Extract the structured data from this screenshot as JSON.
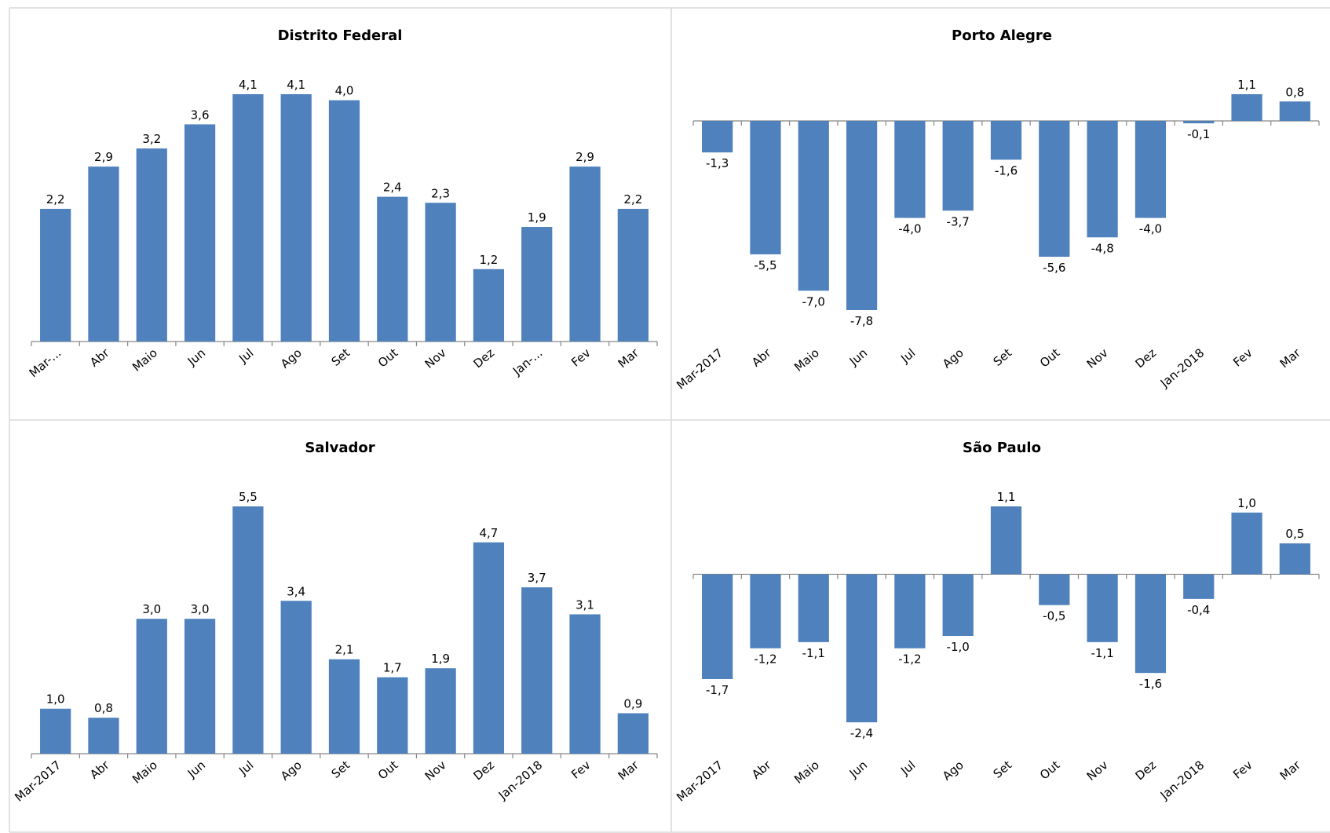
{
  "chart_data": [
    {
      "type": "bar",
      "title": "Distrito Federal",
      "color": "#4f81bd",
      "categories": [
        "Mar-...",
        "Abr",
        "Maio",
        "Jun",
        "Jul",
        "Ago",
        "Set",
        "Out",
        "Nov",
        "Dez",
        "Jan-...",
        "Fev",
        "Mar"
      ],
      "values": [
        2.2,
        2.9,
        3.2,
        3.6,
        4.1,
        4.1,
        4.0,
        2.4,
        2.3,
        1.2,
        1.9,
        2.9,
        2.2
      ],
      "value_labels": [
        "2,2",
        "2,9",
        "3,2",
        "3,6",
        "4,1",
        "4,1",
        "4,0",
        "2,4",
        "2,3",
        "1,2",
        "1,9",
        "2,9",
        "2,2"
      ]
    },
    {
      "type": "bar",
      "title": "Porto Alegre",
      "color": "#4f81bd",
      "categories": [
        "Mar-2017",
        "Abr",
        "Maio",
        "Jun",
        "Jul",
        "Ago",
        "Set",
        "Out",
        "Nov",
        "Dez",
        "Jan-2018",
        "Fev",
        "Mar"
      ],
      "values": [
        -1.3,
        -5.5,
        -7.0,
        -7.8,
        -4.0,
        -3.7,
        -1.6,
        -5.6,
        -4.8,
        -4.0,
        -0.1,
        1.1,
        0.8
      ],
      "value_labels": [
        "-1,3",
        "-5,5",
        "-7,0",
        "-7,8",
        "-4,0",
        "-3,7",
        "-1,6",
        "-5,6",
        "-4,8",
        "-4,0",
        "-0,1",
        "1,1",
        "0,8"
      ]
    },
    {
      "type": "bar",
      "title": "Salvador",
      "color": "#4f81bd",
      "categories": [
        "Mar-2017",
        "Abr",
        "Maio",
        "Jun",
        "Jul",
        "Ago",
        "Set",
        "Out",
        "Nov",
        "Dez",
        "Jan-2018",
        "Fev",
        "Mar"
      ],
      "values": [
        1.0,
        0.8,
        3.0,
        3.0,
        5.5,
        3.4,
        2.1,
        1.7,
        1.9,
        4.7,
        3.7,
        3.1,
        0.9
      ],
      "value_labels": [
        "1,0",
        "0,8",
        "3,0",
        "3,0",
        "5,5",
        "3,4",
        "2,1",
        "1,7",
        "1,9",
        "4,7",
        "3,7",
        "3,1",
        "0,9"
      ]
    },
    {
      "type": "bar",
      "title": "São Paulo",
      "color": "#4f81bd",
      "categories": [
        "Mar-2017",
        "Abr",
        "Maio",
        "Jun",
        "Jul",
        "Ago",
        "Set",
        "Out",
        "Nov",
        "Dez",
        "Jan-2018",
        "Fev",
        "Mar"
      ],
      "values": [
        -1.7,
        -1.2,
        -1.1,
        -2.4,
        -1.2,
        -1.0,
        1.1,
        -0.5,
        -1.1,
        -1.6,
        -0.4,
        1.0,
        0.5
      ],
      "value_labels": [
        "-1,7",
        "-1,2",
        "-1,1",
        "-2,4",
        "-1,2",
        "-1,0",
        "1,1",
        "-0,5",
        "-1,1",
        "-1,6",
        "-0,4",
        "1,0",
        "0,5"
      ]
    }
  ]
}
